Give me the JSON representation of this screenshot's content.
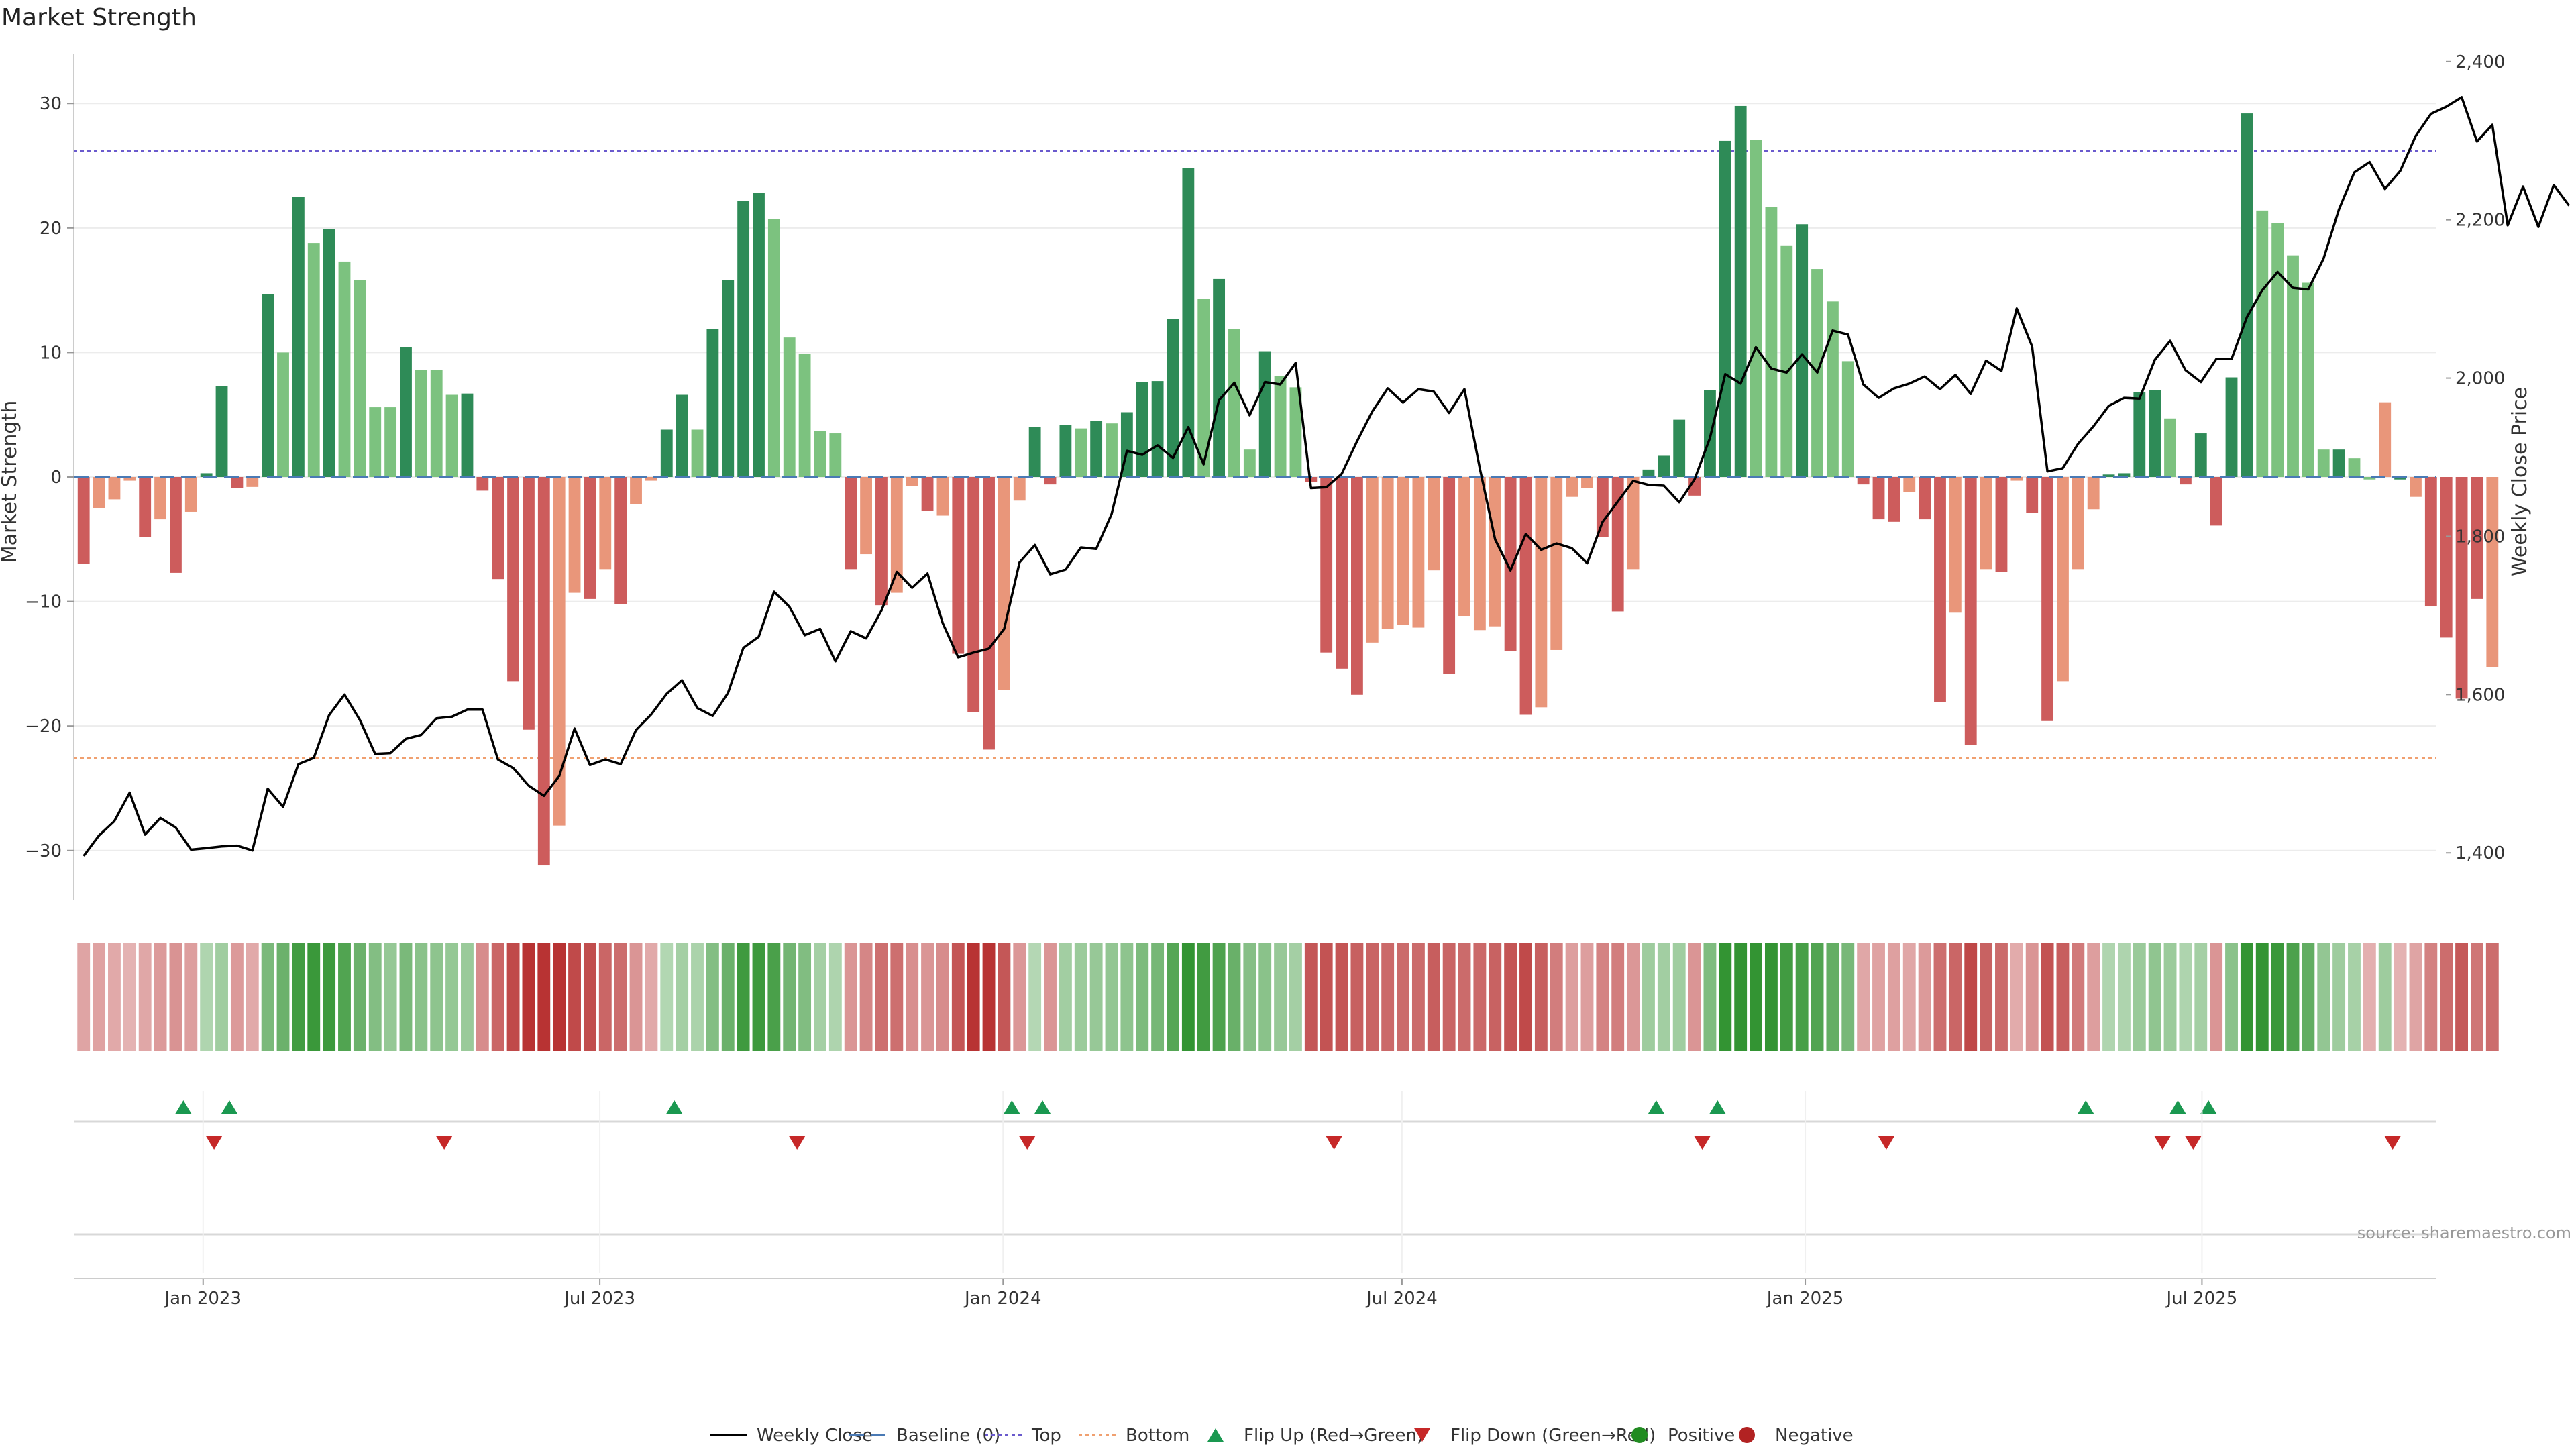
{
  "title": "Market Strength",
  "source_note": "source: sharemaestro.com",
  "colors": {
    "pos_dark": "#2e8b57",
    "pos_light": "#7cc27f",
    "neg_dark": "#cd5c5c",
    "neg_light": "#e9967a",
    "price_line": "#000000",
    "top_line": "#6a5acd",
    "bottom_line": "#f0a070",
    "baseline": "#4a7ab5",
    "flip_up": "#1a9850",
    "flip_down": "#c62828",
    "positive": "#228b22",
    "negative": "#b22222"
  },
  "chart_data": {
    "type": "bar",
    "title": "Market Strength",
    "ylabel": "Market Strength",
    "y2label": "Weekly Close Price",
    "ylim": [
      -34,
      34
    ],
    "y2lim": [
      1340,
      2410
    ],
    "xlim": [
      "2022-11-03",
      "2025-10-16"
    ],
    "y_ticks": [
      -30,
      -20,
      -10,
      0,
      10,
      20,
      30
    ],
    "y_tick_labels": [
      "−30",
      "−20",
      "−10",
      "0",
      "10",
      "20",
      "30"
    ],
    "y2_ticks": [
      1400,
      1600,
      1800,
      2000,
      2200,
      2400
    ],
    "y2_tick_labels": [
      "1,400",
      "1,600",
      "1,800",
      "2,000",
      "2,200",
      "2,400"
    ],
    "x_ticks": [
      "2023-01-01",
      "2023-07-01",
      "2024-01-01",
      "2024-07-01",
      "2025-01-01",
      "2025-07-01"
    ],
    "x_tick_labels": [
      "Jan 2023",
      "Jul 2023",
      "Jan 2024",
      "Jul 2024",
      "Jan 2025",
      "Jul 2025"
    ],
    "start_date": "2022-11-04",
    "week_step_days": 7,
    "top_threshold": 26.2,
    "bottom_threshold": -22.6,
    "strength": [
      -7,
      -2.5,
      -1.8,
      -0.3,
      -4.8,
      -3.4,
      -7.7,
      -2.8,
      0.3,
      7.3,
      -0.9,
      -0.8,
      14.7,
      10,
      22.5,
      18.8,
      19.9,
      17.3,
      15.8,
      5.6,
      5.6,
      10.4,
      8.6,
      8.6,
      6.6,
      6.7,
      -1.1,
      -8.2,
      -16.4,
      -20.3,
      -31.2,
      -28,
      -9.3,
      -9.8,
      -7.4,
      -10.2,
      -2.2,
      -0.3,
      3.8,
      6.6,
      3.8,
      11.9,
      15.8,
      22.2,
      22.8,
      20.7,
      11.2,
      9.9,
      3.7,
      3.5,
      -7.4,
      -6.2,
      -10.3,
      -9.3,
      -0.7,
      -2.7,
      -3.1,
      -14.2,
      -18.9,
      -21.9,
      -17.1,
      -1.9,
      4,
      -0.6,
      4.2,
      3.9,
      4.5,
      4.3,
      5.2,
      7.6,
      7.7,
      12.7,
      24.8,
      14.3,
      15.9,
      11.9,
      2.2,
      10.1,
      8.1,
      7.2,
      -0.4,
      -14.1,
      -15.4,
      -17.5,
      -13.3,
      -12.2,
      -11.9,
      -12.1,
      -7.5,
      -15.8,
      -11.2,
      -12.3,
      -12,
      -14,
      -19.1,
      -18.5,
      -13.9,
      -1.6,
      -0.9,
      -4.8,
      -10.8,
      -7.4,
      0.6,
      1.7,
      4.6,
      -1.5,
      7,
      27,
      29.8,
      27.1,
      21.7,
      18.6,
      20.3,
      16.7,
      14.1,
      9.3,
      -0.6,
      -3.4,
      -3.6,
      -1.2,
      -3.4,
      -18.1,
      -10.9,
      -21.5,
      -7.4,
      -7.6,
      -0.3,
      -2.9,
      -19.6,
      -16.4,
      -7.4,
      -2.6,
      0.2,
      0.3,
      6.8,
      7,
      4.7,
      -0.6,
      3.5,
      -3.9,
      8,
      29.2,
      21.4,
      20.4,
      17.8,
      15.6,
      2.2,
      2.2,
      1.5,
      -0.2,
      6,
      -0.2,
      -1.6,
      -10.4,
      -12.9,
      -17.8,
      -9.8,
      -15.3
    ],
    "series_colors": [
      "#cd5c5c",
      "#e9967a",
      "#e9967a",
      "#e9967a",
      "#cd5c5c",
      "#e9967a",
      "#cd5c5c",
      "#e9967a",
      "#2e8b57",
      "#2e8b57",
      "#cd5c5c",
      "#e9967a",
      "#2e8b57",
      "#7cc27f",
      "#2e8b57",
      "#7cc27f",
      "#2e8b57",
      "#7cc27f",
      "#7cc27f",
      "#7cc27f",
      "#7cc27f",
      "#2e8b57",
      "#7cc27f",
      "#7cc27f",
      "#7cc27f",
      "#2e8b57",
      "#cd5c5c",
      "#cd5c5c",
      "#cd5c5c",
      "#cd5c5c",
      "#cd5c5c",
      "#e9967a",
      "#e9967a",
      "#cd5c5c",
      "#e9967a",
      "#cd5c5c",
      "#e9967a",
      "#e9967a",
      "#2e8b57",
      "#2e8b57",
      "#7cc27f",
      "#2e8b57",
      "#2e8b57",
      "#2e8b57",
      "#2e8b57",
      "#7cc27f",
      "#7cc27f",
      "#7cc27f",
      "#7cc27f",
      "#7cc27f",
      "#cd5c5c",
      "#e9967a",
      "#cd5c5c",
      "#e9967a",
      "#e9967a",
      "#cd5c5c",
      "#e9967a",
      "#cd5c5c",
      "#cd5c5c",
      "#cd5c5c",
      "#e9967a",
      "#e9967a",
      "#2e8b57",
      "#cd5c5c",
      "#2e8b57",
      "#7cc27f",
      "#2e8b57",
      "#7cc27f",
      "#2e8b57",
      "#2e8b57",
      "#2e8b57",
      "#2e8b57",
      "#2e8b57",
      "#7cc27f",
      "#2e8b57",
      "#7cc27f",
      "#7cc27f",
      "#2e8b57",
      "#7cc27f",
      "#7cc27f",
      "#cd5c5c",
      "#cd5c5c",
      "#cd5c5c",
      "#cd5c5c",
      "#e9967a",
      "#e9967a",
      "#e9967a",
      "#e9967a",
      "#e9967a",
      "#cd5c5c",
      "#e9967a",
      "#e9967a",
      "#e9967a",
      "#cd5c5c",
      "#cd5c5c",
      "#e9967a",
      "#e9967a",
      "#e9967a",
      "#e9967a",
      "#cd5c5c",
      "#cd5c5c",
      "#e9967a",
      "#2e8b57",
      "#2e8b57",
      "#2e8b57",
      "#cd5c5c",
      "#2e8b57",
      "#2e8b57",
      "#2e8b57",
      "#7cc27f",
      "#7cc27f",
      "#7cc27f",
      "#2e8b57",
      "#7cc27f",
      "#7cc27f",
      "#7cc27f",
      "#cd5c5c",
      "#cd5c5c",
      "#cd5c5c",
      "#e9967a",
      "#cd5c5c",
      "#cd5c5c",
      "#e9967a",
      "#cd5c5c",
      "#e9967a",
      "#cd5c5c",
      "#e9967a",
      "#cd5c5c",
      "#cd5c5c",
      "#e9967a",
      "#e9967a",
      "#e9967a",
      "#2e8b57",
      "#2e8b57",
      "#2e8b57",
      "#2e8b57",
      "#7cc27f",
      "#cd5c5c",
      "#2e8b57",
      "#cd5c5c",
      "#2e8b57",
      "#2e8b57",
      "#7cc27f",
      "#7cc27f",
      "#7cc27f",
      "#7cc27f",
      "#7cc27f",
      "#2e8b57",
      "#7cc27f",
      "#7cc27f",
      "#e9967a",
      "#2e8b57",
      "#e9967a",
      "#cd5c5c",
      "#cd5c5c",
      "#cd5c5c",
      "#cd5c5c",
      "#e9967a",
      "#cd5c5c"
    ],
    "price": [
      1396,
      1422,
      1440,
      1476,
      1423,
      1444,
      1432,
      1404,
      1406,
      1408,
      1409,
      1403,
      1481,
      1458,
      1512,
      1520,
      1574,
      1600,
      1568,
      1525,
      1526,
      1544,
      1549,
      1570,
      1572,
      1581,
      1581,
      1518,
      1507,
      1485,
      1472,
      1497,
      1557,
      1511,
      1518,
      1512,
      1555,
      1575,
      1601,
      1618,
      1583,
      1573,
      1602,
      1659,
      1673,
      1730,
      1711,
      1675,
      1683,
      1642,
      1680,
      1671,
      1706,
      1755,
      1735,
      1753,
      1690,
      1647,
      1653,
      1658,
      1683,
      1767,
      1789,
      1752,
      1758,
      1786,
      1784,
      1828,
      1908,
      1903,
      1915,
      1899,
      1938,
      1891,
      1972,
      1994,
      1953,
      1995,
      1992,
      2019,
      1861,
      1862,
      1879,
      1920,
      1958,
      1987,
      1969,
      1986,
      1983,
      1956,
      1986,
      1886,
      1796,
      1757,
      1803,
      1783,
      1791,
      1785,
      1766,
      1818,
      1844,
      1870,
      1865,
      1864,
      1843,
      1872,
      1924,
      2005,
      1993,
      2039,
      2012,
      2007,
      2030,
      2007,
      2060,
      2055,
      1992,
      1975,
      1987,
      1993,
      2002,
      1986,
      2004,
      1980,
      2022,
      2009,
      2088,
      2040,
      1882,
      1886,
      1917,
      1939,
      1965,
      1975,
      1974,
      2023,
      2047,
      2010,
      1995,
      2024,
      2024,
      2077,
      2111,
      2134,
      2114,
      2112,
      2151,
      2213,
      2260,
      2273,
      2239,
      2262,
      2306,
      2334,
      2343,
      2355,
      2299,
      2320,
      2193,
      2242,
      2191,
      2244,
      2218
    ],
    "heat_strength": [
      -1.9,
      -2.0,
      -1.7,
      -1.3,
      -1.8,
      -2.4,
      -2.7,
      -2.2,
      1.4,
      2.1,
      -2.4,
      -1.7,
      3.8,
      4.5,
      6.3,
      6.7,
      6.6,
      5.7,
      4.5,
      3.4,
      2.6,
      3.8,
      3.1,
      2.9,
      2.6,
      2.4,
      -3.0,
      -4.7,
      -6.0,
      -7.2,
      -9.3,
      -8.8,
      -6.0,
      -5.8,
      -4.7,
      -4.4,
      -2.6,
      -1.7,
      1.3,
      1.9,
      1.6,
      3.4,
      4.5,
      6.5,
      6.6,
      6.0,
      4.2,
      3.5,
      1.9,
      1.5,
      -2.6,
      -3.3,
      -4.3,
      -4.3,
      -2.9,
      -2.6,
      -3.0,
      -5.5,
      -7.2,
      -7.5,
      -5.4,
      -2.5,
      1.2,
      -2.6,
      2.0,
      2.3,
      2.5,
      2.7,
      2.9,
      3.7,
      4.0,
      5.5,
      8.0,
      6.4,
      5.8,
      4.6,
      3.3,
      3.1,
      2.5,
      1.9,
      -5.4,
      -5.6,
      -5.5,
      -5.0,
      -4.8,
      -4.6,
      -4.5,
      -4.5,
      -5.1,
      -4.8,
      -4.5,
      -4.6,
      -4.9,
      -5.5,
      -6.0,
      -5.0,
      -3.7,
      -2.2,
      -2.2,
      -3.4,
      -3.7,
      -2.5,
      2.2,
      2.0,
      2.1,
      -2.6,
      3.6,
      7.8,
      9.1,
      8.4,
      7.3,
      6.4,
      6.1,
      5.7,
      4.8,
      3.9,
      -1.8,
      -2.0,
      -2.1,
      -1.8,
      -2.4,
      -4.3,
      -4.7,
      -6.1,
      -4.9,
      -4.5,
      -1.6,
      -2.6,
      -5.6,
      -5.1,
      -3.8,
      -2.2,
      1.4,
      1.5,
      2.4,
      2.8,
      2.3,
      1.5,
      1.9,
      -2.6,
      3.1,
      7.6,
      7.3,
      6.7,
      5.9,
      4.9,
      2.7,
      2.2,
      1.8,
      -1.4,
      2.2,
      -1.3,
      -1.9,
      -3.5,
      -4.4,
      -5.3,
      -4.0,
      -4.4
    ],
    "flip_up": [
      "2022-12-23",
      "2023-01-13",
      "2023-08-04",
      "2024-01-05",
      "2024-01-19",
      "2024-10-25",
      "2024-11-22",
      "2025-05-09",
      "2025-06-20",
      "2025-07-04"
    ],
    "flip_down": [
      "2023-01-06",
      "2023-04-21",
      "2023-09-29",
      "2024-01-12",
      "2024-05-31",
      "2024-11-15",
      "2025-02-07",
      "2025-06-13",
      "2025-06-27",
      "2025-09-26"
    ],
    "legend": [
      "Weekly Close",
      "Baseline (0)",
      "Top",
      "Bottom",
      "Flip Up (Red→Green)",
      "Flip Down (Green→Red)",
      "Positive",
      "Negative"
    ],
    "legend_placement": "bottom-center",
    "grid": true
  }
}
